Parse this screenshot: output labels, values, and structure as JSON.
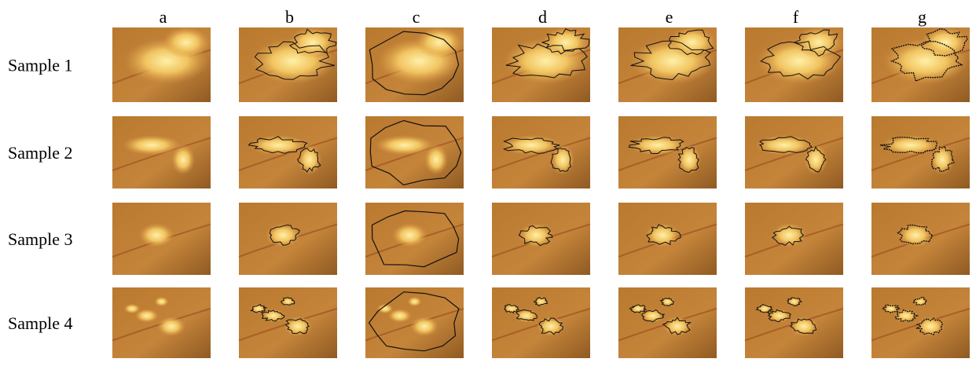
{
  "columns": [
    "a",
    "b",
    "c",
    "d",
    "e",
    "f",
    "g"
  ],
  "rows": [
    "Sample 1",
    "Sample 2",
    "Sample 3",
    "Sample 4"
  ]
}
